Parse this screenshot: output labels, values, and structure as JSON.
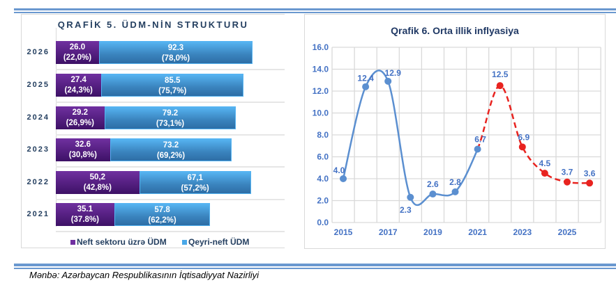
{
  "source": "Mənbə: Azərbaycan Respublikasının İqtisadiyyat Nazirliyi",
  "chart_data": [
    {
      "type": "bar",
      "orientation": "horizontal",
      "stacked": true,
      "title": "QRAFİK 5. ÜDM-NİN STRUKTURU",
      "categories": [
        "2026",
        "2025",
        "2024",
        "2023",
        "2022",
        "2021"
      ],
      "series": [
        {
          "name": "Neft sektoru üzrə ÜDM",
          "color": "#7030a0",
          "values": [
            26.0,
            27.4,
            29.2,
            32.6,
            50.2,
            35.1
          ],
          "labels": [
            "26.0",
            "27.4",
            "29.2",
            "32.6",
            "50,2",
            "35.1"
          ],
          "pct": [
            "(22,0%)",
            "(24,3%)",
            "(26,9%)",
            "(30,8%)",
            "(42,8%)",
            "(37.8%)"
          ]
        },
        {
          "name": "Qeyri-neft ÜDM",
          "color": "#4aa8e8",
          "values": [
            92.3,
            85.5,
            79.2,
            73.2,
            67.1,
            57.8
          ],
          "labels": [
            "92.3",
            "85.5",
            "79.2",
            "73.2",
            "67,1",
            "57.8"
          ],
          "pct": [
            "(78,0%)",
            "(75,7%)",
            "(73,1%)",
            "(69,2%)",
            "(57,2%)",
            "(62,2%)"
          ]
        }
      ],
      "legend": "bottom"
    },
    {
      "type": "line",
      "title": "Qrafik 6. Orta illik inflyasiya",
      "x": [
        2015,
        2016,
        2017,
        2018,
        2019,
        2020,
        2021,
        2022,
        2023,
        2024,
        2025,
        2026
      ],
      "y": [
        4.0,
        12.4,
        12.9,
        2.3,
        2.6,
        2.8,
        6.7,
        12.5,
        6.9,
        4.5,
        3.7,
        3.6
      ],
      "labels": [
        "4.0",
        "12.4",
        "12.9",
        "2.3",
        "2.6",
        "2.8",
        "6.7",
        "12.5",
        "6.9",
        "4.5",
        "3.7",
        "3.6"
      ],
      "actual_color": "#5b8fd0",
      "forecast_color": "#e8231f",
      "forecast_from": 2021,
      "ylim": [
        0,
        16
      ],
      "yticks": [
        "0.0",
        "2.0",
        "4.0",
        "6.0",
        "8.0",
        "10.0",
        "12.0",
        "14.0",
        "16.0"
      ],
      "xticks": [
        "2015",
        "2017",
        "2019",
        "2021",
        "2023",
        "2025"
      ],
      "grid": true
    }
  ]
}
